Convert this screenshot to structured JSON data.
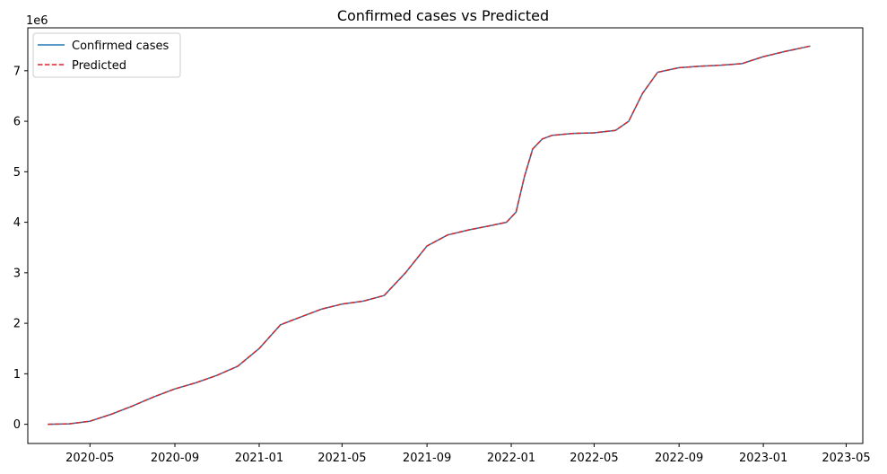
{
  "chart_data": {
    "type": "line",
    "title": "Confirmed cases vs Predicted",
    "xlabel": "",
    "ylabel": "",
    "y_offset_label": "1e6",
    "xlim": [
      "2020-02-01",
      "2023-05-25"
    ],
    "ylim": [
      -0.38,
      7.85
    ],
    "grid": false,
    "legend_position": "upper-left",
    "x_tick_labels": [
      "2020-05",
      "2020-09",
      "2021-01",
      "2021-05",
      "2021-09",
      "2022-01",
      "2022-05",
      "2022-09",
      "2023-01",
      "2023-05"
    ],
    "y_tick_labels": [
      "0",
      "1",
      "2",
      "3",
      "4",
      "5",
      "6",
      "7"
    ],
    "y_tick_values": [
      0,
      1,
      2,
      3,
      4,
      5,
      6,
      7
    ],
    "series": [
      {
        "name": "Confirmed cases",
        "color": "#1f77b4",
        "style": "solid",
        "points": [
          [
            "2020-03-01",
            0.0
          ],
          [
            "2020-04-01",
            0.01
          ],
          [
            "2020-05-01",
            0.06
          ],
          [
            "2020-06-01",
            0.2
          ],
          [
            "2020-07-01",
            0.36
          ],
          [
            "2020-08-01",
            0.54
          ],
          [
            "2020-09-01",
            0.7
          ],
          [
            "2020-10-01",
            0.82
          ],
          [
            "2020-11-01",
            0.97
          ],
          [
            "2020-12-01",
            1.15
          ],
          [
            "2021-01-01",
            1.5
          ],
          [
            "2021-02-01",
            1.97
          ],
          [
            "2021-03-01",
            2.12
          ],
          [
            "2021-04-01",
            2.28
          ],
          [
            "2021-05-01",
            2.38
          ],
          [
            "2021-06-01",
            2.44
          ],
          [
            "2021-07-01",
            2.55
          ],
          [
            "2021-08-01",
            3.0
          ],
          [
            "2021-09-01",
            3.53
          ],
          [
            "2021-10-01",
            3.75
          ],
          [
            "2021-11-01",
            3.85
          ],
          [
            "2021-12-01",
            3.93
          ],
          [
            "2021-12-25",
            4.0
          ],
          [
            "2022-01-08",
            4.2
          ],
          [
            "2022-01-20",
            4.9
          ],
          [
            "2022-02-01",
            5.45
          ],
          [
            "2022-02-15",
            5.65
          ],
          [
            "2022-03-01",
            5.72
          ],
          [
            "2022-04-01",
            5.76
          ],
          [
            "2022-05-01",
            5.77
          ],
          [
            "2022-06-01",
            5.82
          ],
          [
            "2022-06-20",
            6.0
          ],
          [
            "2022-07-10",
            6.55
          ],
          [
            "2022-08-01",
            6.97
          ],
          [
            "2022-09-01",
            7.06
          ],
          [
            "2022-10-01",
            7.09
          ],
          [
            "2022-11-01",
            7.11
          ],
          [
            "2022-12-01",
            7.14
          ],
          [
            "2023-01-01",
            7.28
          ],
          [
            "2023-02-01",
            7.38
          ],
          [
            "2023-03-10",
            7.49
          ]
        ]
      },
      {
        "name": "Predicted",
        "color": "#d62728",
        "style": "dashed",
        "points": [
          [
            "2020-03-01",
            0.0
          ],
          [
            "2020-04-01",
            0.01
          ],
          [
            "2020-05-01",
            0.06
          ],
          [
            "2020-06-01",
            0.2
          ],
          [
            "2020-07-01",
            0.36
          ],
          [
            "2020-08-01",
            0.54
          ],
          [
            "2020-09-01",
            0.7
          ],
          [
            "2020-10-01",
            0.82
          ],
          [
            "2020-11-01",
            0.97
          ],
          [
            "2020-12-01",
            1.15
          ],
          [
            "2021-01-01",
            1.5
          ],
          [
            "2021-02-01",
            1.97
          ],
          [
            "2021-03-01",
            2.12
          ],
          [
            "2021-04-01",
            2.28
          ],
          [
            "2021-05-01",
            2.38
          ],
          [
            "2021-06-01",
            2.44
          ],
          [
            "2021-07-01",
            2.55
          ],
          [
            "2021-08-01",
            3.0
          ],
          [
            "2021-09-01",
            3.53
          ],
          [
            "2021-10-01",
            3.75
          ],
          [
            "2021-11-01",
            3.85
          ],
          [
            "2021-12-01",
            3.93
          ],
          [
            "2021-12-25",
            4.0
          ],
          [
            "2022-01-08",
            4.2
          ],
          [
            "2022-01-20",
            4.9
          ],
          [
            "2022-02-01",
            5.45
          ],
          [
            "2022-02-15",
            5.65
          ],
          [
            "2022-03-01",
            5.72
          ],
          [
            "2022-04-01",
            5.76
          ],
          [
            "2022-05-01",
            5.77
          ],
          [
            "2022-06-01",
            5.82
          ],
          [
            "2022-06-20",
            6.0
          ],
          [
            "2022-07-10",
            6.55
          ],
          [
            "2022-08-01",
            6.97
          ],
          [
            "2022-09-01",
            7.06
          ],
          [
            "2022-10-01",
            7.09
          ],
          [
            "2022-11-01",
            7.11
          ],
          [
            "2022-12-01",
            7.14
          ],
          [
            "2023-01-01",
            7.28
          ],
          [
            "2023-02-01",
            7.38
          ],
          [
            "2023-03-10",
            7.49
          ]
        ]
      }
    ]
  }
}
